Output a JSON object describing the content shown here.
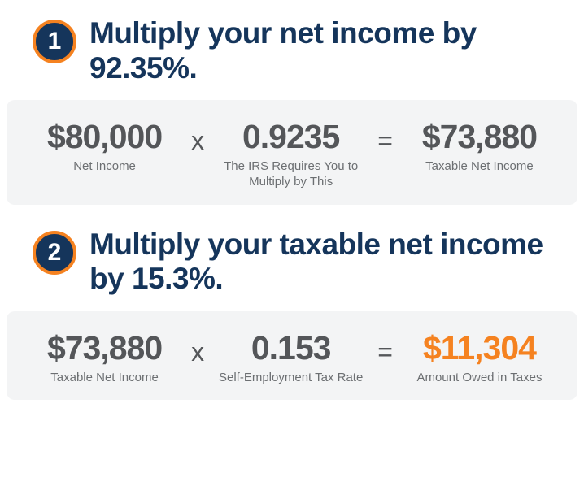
{
  "colors": {
    "navy": "#15355b",
    "orange": "#f58220",
    "white": "#ffffff",
    "box_bg": "#f3f4f5",
    "eq_text": "#545659",
    "label_text": "#6c6f72",
    "badge_border_width": 4
  },
  "typography": {
    "title_fontsize": 37,
    "value_fontsize": 41,
    "label_fontsize": 15,
    "operator_fontsize": 32,
    "badge_fontsize": 30
  },
  "steps": [
    {
      "number": "1",
      "title": "Multiply your net income by 92.35%.",
      "equation": {
        "terms": [
          {
            "value": "$80,000",
            "label": "Net Income",
            "highlight": false
          },
          {
            "value": "0.9235",
            "label": "The IRS Requires You to Multiply by This",
            "highlight": false
          },
          {
            "value": "$73,880",
            "label": "Taxable Net Income",
            "highlight": false
          }
        ],
        "operators": [
          "x",
          "="
        ]
      }
    },
    {
      "number": "2",
      "title": "Multiply your taxable net income by 15.3%.",
      "equation": {
        "terms": [
          {
            "value": "$73,880",
            "label": "Taxable Net Income",
            "highlight": false
          },
          {
            "value": "0.153",
            "label": "Self-Employment Tax Rate",
            "highlight": false
          },
          {
            "value": "$11,304",
            "label": "Amount Owed in Taxes",
            "highlight": true
          }
        ],
        "operators": [
          "x",
          "="
        ]
      }
    }
  ]
}
